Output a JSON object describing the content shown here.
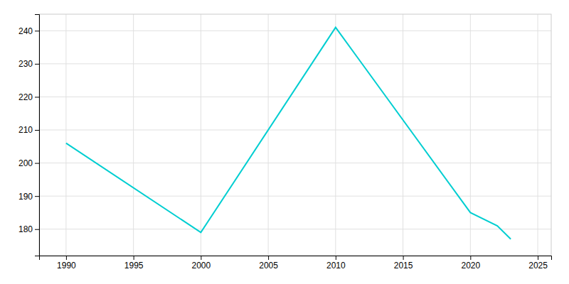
{
  "chart_data": {
    "type": "line",
    "x": [
      1990,
      2000,
      2010,
      2020,
      2022,
      2023
    ],
    "values": [
      206,
      179,
      241,
      185,
      181,
      177
    ],
    "color": "#00CED1",
    "xlim": [
      1988,
      2026
    ],
    "ylim": [
      172,
      245
    ],
    "xticks": [
      1990,
      1995,
      2000,
      2005,
      2010,
      2015,
      2020,
      2025
    ],
    "yticks": [
      180,
      190,
      200,
      210,
      220,
      230,
      240
    ],
    "grid": true
  }
}
